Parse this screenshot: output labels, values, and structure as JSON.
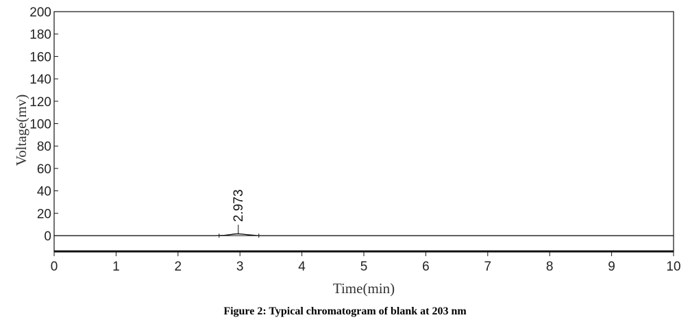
{
  "chart_data": {
    "type": "line",
    "xlabel": "Time(min)",
    "ylabel": "Voltage(mv)",
    "xlim": [
      0,
      10
    ],
    "ylim": [
      -15,
      200
    ],
    "x_ticks": [
      "0",
      "1",
      "2",
      "3",
      "4",
      "5",
      "6",
      "7",
      "8",
      "9",
      "10"
    ],
    "y_ticks": [
      "200",
      "180",
      "160",
      "140",
      "120",
      "100",
      "80",
      "60",
      "40",
      "20",
      "0"
    ],
    "series": [
      {
        "x": [
          0,
          2.6,
          2.75,
          2.85,
          2.9,
          2.973,
          3.05,
          3.1,
          3.2,
          3.3,
          10
        ],
        "y": [
          0,
          0,
          0.3,
          0.9,
          1.4,
          1.6,
          1.3,
          0.9,
          0.4,
          0,
          0
        ],
        "color": "#000000"
      }
    ],
    "peaks": [
      {
        "x": 2.973,
        "label": "2.973"
      }
    ],
    "baseline": 0,
    "grid": false,
    "legend": "none"
  },
  "caption": "Figure 2: Typical chromatogram of blank at 203 nm"
}
